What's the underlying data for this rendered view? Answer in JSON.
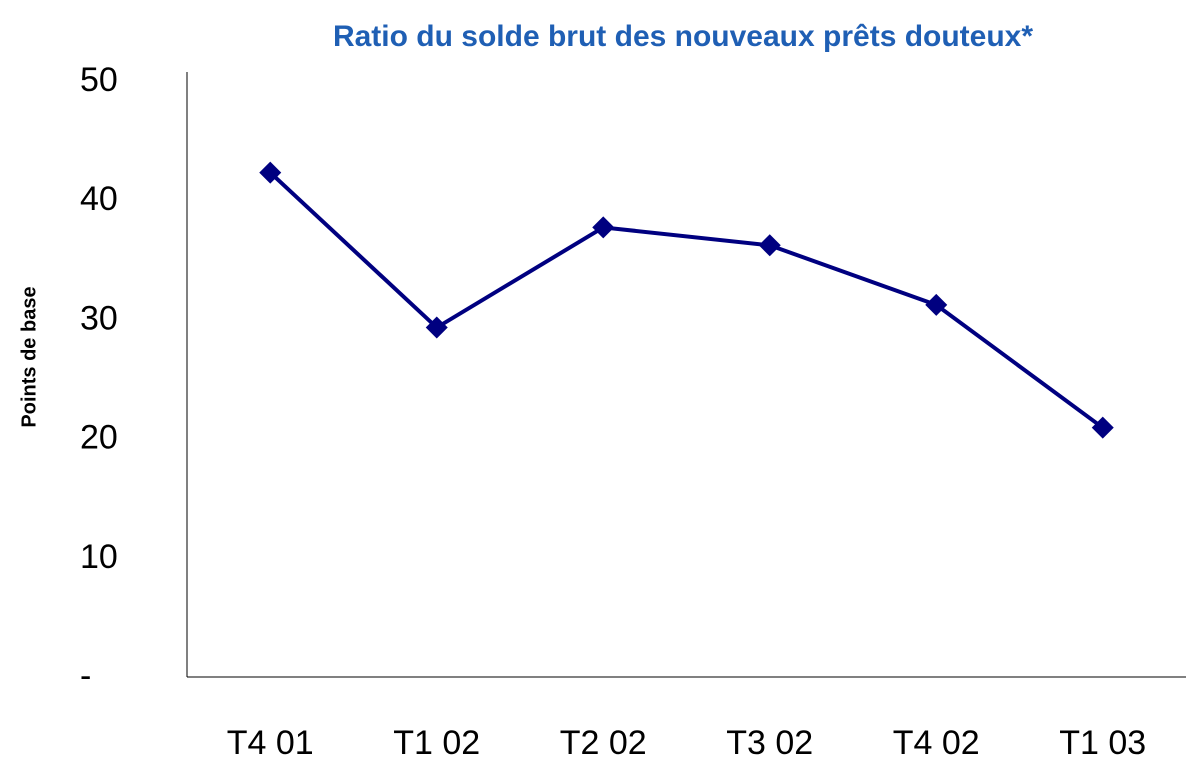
{
  "chart_data": {
    "type": "line",
    "title": "Ratio du solde brut des nouveaux prêts douteux*",
    "y_label": "Points de base",
    "categories": [
      "T4 01",
      "T1 02",
      "T2 02",
      "T3 02",
      "T4 02",
      "T1 03"
    ],
    "series": [
      {
        "name": "Ratio du solde brut des nouveaux prêts douteux",
        "color": "#000080",
        "values": [
          42.4,
          29.4,
          37.8,
          36.3,
          31.3,
          21.0
        ]
      }
    ],
    "ylim": [
      0,
      50
    ],
    "yticks": [
      {
        "value": 0,
        "label": "-"
      },
      10,
      20,
      30,
      40,
      50
    ],
    "grid": false,
    "legend": false
  }
}
